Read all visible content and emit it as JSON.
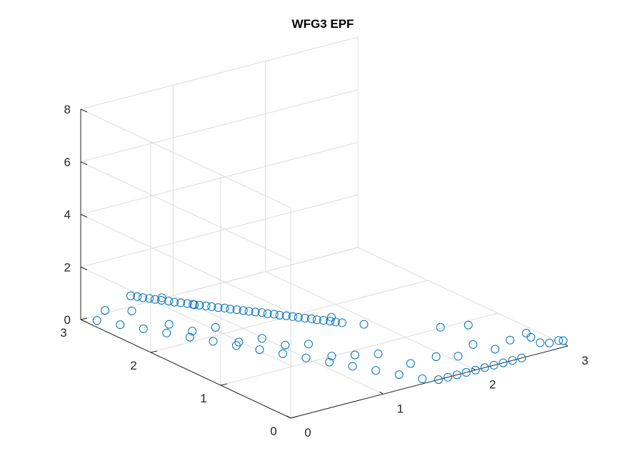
{
  "chart_data": {
    "type": "scatter3d",
    "title": "WFG3 EPF",
    "xlim": [
      0,
      3
    ],
    "ylim": [
      0,
      3
    ],
    "zlim": [
      0,
      8
    ],
    "xticks": [
      "0",
      "1",
      "2",
      "3"
    ],
    "yticks": [
      "0",
      "1",
      "2",
      "3"
    ],
    "zticks": [
      "0",
      "2",
      "4",
      "6",
      "8"
    ],
    "grid": true,
    "marker": "circle",
    "marker_color": "#0072bd",
    "points": [
      [
        0.39,
        2.8,
        0.8
      ],
      [
        0.4,
        2.72,
        0.86
      ],
      [
        0.4,
        2.64,
        0.92
      ],
      [
        0.41,
        2.56,
        0.98
      ],
      [
        0.41,
        2.48,
        1.04
      ],
      [
        0.42,
        2.4,
        1.1
      ],
      [
        0.43,
        2.31,
        1.17
      ],
      [
        0.43,
        2.23,
        1.23
      ],
      [
        0.44,
        2.15,
        1.3
      ],
      [
        0.45,
        2.07,
        1.36
      ],
      [
        0.45,
        1.99,
        1.43
      ],
      [
        0.46,
        1.91,
        1.49
      ],
      [
        0.47,
        1.83,
        1.55
      ],
      [
        0.47,
        1.75,
        1.62
      ],
      [
        0.48,
        1.67,
        1.68
      ],
      [
        0.49,
        1.59,
        1.75
      ],
      [
        0.49,
        1.51,
        1.81
      ],
      [
        0.5,
        1.43,
        1.88
      ],
      [
        0.51,
        1.35,
        1.94
      ],
      [
        0.51,
        1.27,
        2.01
      ],
      [
        0.52,
        1.19,
        2.07
      ],
      [
        0.53,
        1.11,
        2.14
      ],
      [
        0.53,
        1.03,
        2.2
      ],
      [
        0.54,
        0.95,
        2.27
      ],
      [
        0.54,
        0.87,
        2.33
      ],
      [
        0.55,
        0.79,
        2.4
      ],
      [
        0.56,
        0.71,
        2.46
      ],
      [
        0.56,
        0.63,
        2.53
      ],
      [
        0.57,
        0.55,
        2.59
      ],
      [
        0.58,
        0.47,
        2.66
      ],
      [
        0.58,
        0.39,
        2.72
      ],
      [
        0.59,
        0.31,
        2.79
      ],
      [
        0.6,
        0.23,
        2.85
      ],
      [
        0.6,
        0.15,
        2.92
      ],
      [
        0.61,
        0.07,
        2.98
      ],
      [
        0.1,
        2.9,
        0.0
      ],
      [
        0.2,
        2.7,
        0.0
      ],
      [
        0.3,
        2.5,
        0.0
      ],
      [
        0.4,
        2.3,
        0.0
      ],
      [
        0.5,
        2.1,
        0.0
      ],
      [
        0.6,
        1.9,
        0.0
      ],
      [
        0.7,
        1.7,
        0.0
      ],
      [
        0.8,
        1.5,
        0.0
      ],
      [
        0.9,
        1.3,
        0.0
      ],
      [
        1.0,
        1.1,
        0.0
      ],
      [
        1.1,
        0.9,
        0.0
      ],
      [
        1.2,
        0.7,
        0.0
      ],
      [
        1.3,
        0.5,
        0.0
      ],
      [
        1.4,
        0.3,
        0.0
      ],
      [
        1.5,
        0.1,
        0.0
      ],
      [
        1.6,
        0.0,
        0.0
      ],
      [
        1.7,
        0.0,
        0.0
      ],
      [
        1.8,
        0.0,
        0.0
      ],
      [
        1.9,
        0.0,
        0.0
      ],
      [
        2.0,
        0.0,
        0.0
      ],
      [
        2.1,
        0.0,
        0.0
      ],
      [
        2.2,
        0.0,
        0.0
      ],
      [
        2.3,
        0.0,
        0.0
      ],
      [
        2.4,
        0.0,
        0.0
      ],
      [
        2.5,
        0.0,
        0.0
      ],
      [
        0.15,
        2.85,
        0.4
      ],
      [
        0.25,
        2.6,
        0.6
      ],
      [
        0.35,
        2.2,
        0.5
      ],
      [
        0.45,
        2.0,
        0.4
      ],
      [
        0.55,
        1.8,
        0.7
      ],
      [
        0.65,
        1.6,
        0.3
      ],
      [
        0.75,
        1.4,
        0.6
      ],
      [
        0.85,
        1.2,
        0.5
      ],
      [
        0.95,
        1.0,
        0.7
      ],
      [
        1.05,
        0.8,
        0.4
      ],
      [
        1.15,
        0.6,
        0.6
      ],
      [
        1.25,
        0.4,
        0.8
      ],
      [
        1.45,
        0.2,
        0.5
      ],
      [
        1.65,
        0.1,
        0.7
      ],
      [
        1.85,
        0.05,
        0.6
      ],
      [
        2.05,
        0.1,
        0.8
      ],
      [
        2.25,
        0.05,
        0.5
      ],
      [
        2.45,
        0.1,
        0.6
      ],
      [
        2.55,
        0.0,
        0.9
      ],
      [
        2.6,
        0.0,
        0.7
      ],
      [
        2.7,
        0.0,
        0.4
      ],
      [
        2.8,
        0.0,
        0.3
      ],
      [
        2.9,
        0.0,
        0.3
      ],
      [
        2.95,
        0.0,
        0.25
      ],
      [
        0.5,
        2.5,
        1.0
      ],
      [
        0.7,
        2.3,
        0.8
      ],
      [
        1.35,
        1.2,
        1.1
      ],
      [
        1.55,
        1.0,
        0.9
      ],
      [
        2.0,
        0.5,
        1.0
      ],
      [
        2.15,
        0.3,
        1.2
      ]
    ]
  }
}
